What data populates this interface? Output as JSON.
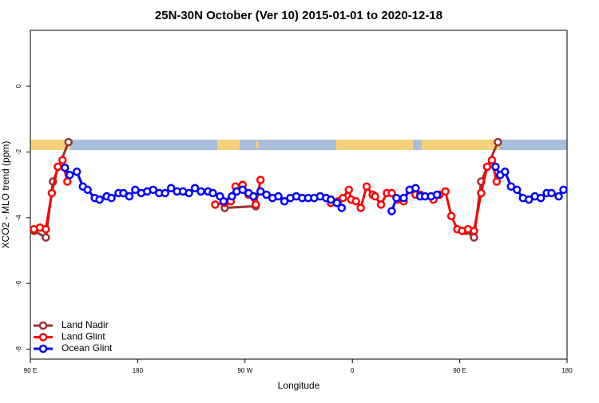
{
  "chart_data": {
    "type": "line",
    "title": "25N-30N October (Ver 10)   2015-01-01 to 2020-12-18",
    "x_label": "Longitude",
    "y_label": "XCO2 - MLO trend (ppm)",
    "xlim": [
      90,
      540
    ],
    "xticks": [
      {
        "value": 90,
        "label": "90 E"
      },
      {
        "value": 180,
        "label": "180"
      },
      {
        "value": 270,
        "label": "90 W"
      },
      {
        "value": 360,
        "label": "0"
      },
      {
        "value": 450,
        "label": "90 E"
      },
      {
        "value": 540,
        "label": "180"
      }
    ],
    "ylim": [
      -8.3,
      1.7
    ],
    "yticks": [
      0,
      -2,
      -4,
      -6,
      -8
    ],
    "legend": "bottom-left",
    "series": [
      {
        "name": "Land Nadir",
        "color": "#993333",
        "x": [
          93,
          103,
          109,
          122,
          null,
          253,
          279,
          null,
          455,
          462,
          468,
          482
        ],
        "values": [
          -4.4,
          -4.6,
          -2.9,
          -1.7,
          null,
          -3.7,
          -3.65,
          null,
          -4.4,
          -4.6,
          -2.9,
          -1.7
        ]
      },
      {
        "name": "Land Glint",
        "color": "#ff0000",
        "x": [
          93,
          98,
          103,
          108,
          113,
          117,
          121,
          null,
          245,
          253,
          258,
          262,
          268,
          273,
          279,
          283,
          null,
          342,
          348,
          352,
          357,
          359,
          363,
          367,
          372,
          377,
          379,
          384,
          389,
          393,
          398,
          403,
          408,
          413,
          417,
          null,
          428,
          433,
          438,
          443,
          448,
          452,
          457,
          462,
          468,
          473,
          477,
          481
        ],
        "values": [
          -4.35,
          -4.3,
          -4.35,
          -3.25,
          -2.45,
          -2.25,
          -2.9,
          null,
          -3.6,
          -3.55,
          -3.5,
          -3.05,
          -3.0,
          -3.3,
          -3.6,
          -2.85,
          null,
          -3.55,
          -3.5,
          -3.4,
          -3.15,
          -3.45,
          -3.5,
          -3.7,
          -3.05,
          -3.3,
          -3.35,
          -3.6,
          -3.25,
          -3.25,
          -3.45,
          -3.5,
          -3.15,
          -3.3,
          -3.3,
          null,
          -3.45,
          -3.3,
          -3.2,
          -3.95,
          -4.35,
          -4.4,
          -4.35,
          -4.4,
          -3.25,
          -2.45,
          -2.25,
          -2.9
        ]
      },
      {
        "name": "Ocean Glint",
        "color": "#0000ff",
        "x": [
          119,
          123,
          129,
          134,
          138,
          144,
          148,
          154,
          158,
          164,
          168,
          173,
          178,
          183,
          188,
          193,
          198,
          203,
          208,
          213,
          218,
          223,
          228,
          233,
          239,
          243,
          249,
          252,
          259,
          263,
          268,
          273,
          277,
          283,
          288,
          293,
          298,
          303,
          308,
          313,
          318,
          323,
          328,
          333,
          338,
          342,
          347,
          351,
          null,
          393,
          397,
          403,
          408,
          413,
          417,
          421,
          426,
          431,
          null,
          480,
          484,
          488,
          493,
          498,
          503,
          508,
          513,
          518,
          523,
          527,
          533,
          537
        ],
        "values": [
          -2.48,
          -2.7,
          -2.6,
          -3.05,
          -3.15,
          -3.4,
          -3.45,
          -3.35,
          -3.4,
          -3.25,
          -3.25,
          -3.35,
          -3.15,
          -3.25,
          -3.2,
          -3.15,
          -3.25,
          -3.25,
          -3.1,
          -3.2,
          -3.2,
          -3.25,
          -3.1,
          -3.2,
          -3.2,
          -3.25,
          -3.35,
          -3.5,
          -3.35,
          -3.2,
          -3.15,
          -3.25,
          -3.35,
          -3.2,
          -3.3,
          -3.4,
          -3.35,
          -3.5,
          -3.4,
          -3.35,
          -3.4,
          -3.4,
          -3.4,
          -3.35,
          -3.4,
          -3.45,
          -3.55,
          -3.7,
          null,
          -3.8,
          -3.4,
          -3.4,
          -3.15,
          -3.1,
          -3.35,
          -3.35,
          -3.35,
          -3.3,
          null,
          -2.45,
          -2.7,
          -2.6,
          -3.05,
          -3.15,
          -3.4,
          -3.45,
          -3.35,
          -3.4,
          -3.25,
          -3.25,
          -3.35,
          -3.15
        ]
      }
    ]
  }
}
